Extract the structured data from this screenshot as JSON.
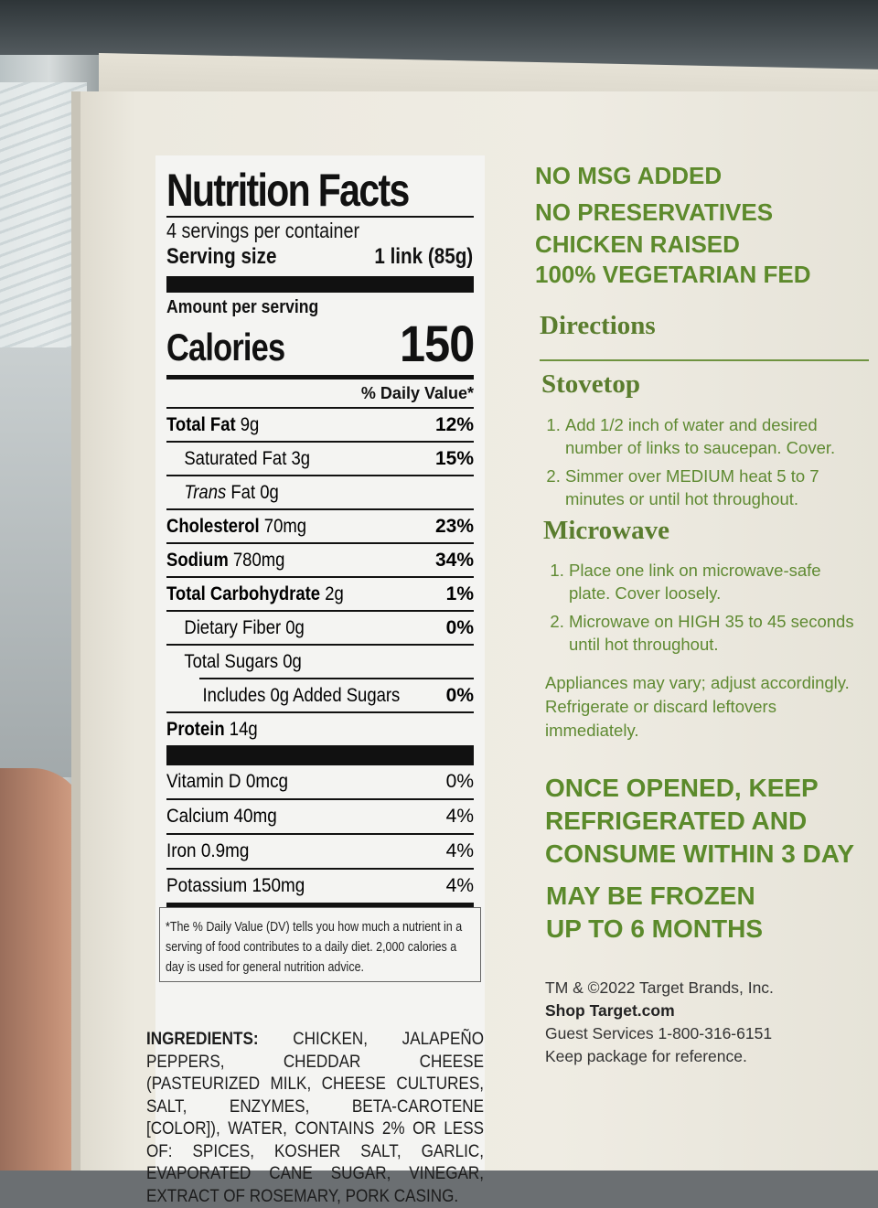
{
  "nutrition": {
    "title": "Nutrition Facts",
    "servings": "4 servings per container",
    "serving_size_label": "Serving size",
    "serving_size_value": "1 link (85g)",
    "amount_per_serving": "Amount per serving",
    "calories_label": "Calories",
    "calories_value": "150",
    "dv_header": "% Daily Value*",
    "rows": [
      {
        "label": "Total Fat",
        "amount": "9g",
        "dv": "12%"
      },
      {
        "label": "Saturated Fat",
        "amount": "3g",
        "dv": "15%"
      },
      {
        "label": "Trans",
        "amount": "Fat 0g",
        "dv": ""
      },
      {
        "label": "Cholesterol",
        "amount": "70mg",
        "dv": "23%"
      },
      {
        "label": "Sodium",
        "amount": "780mg",
        "dv": "34%"
      },
      {
        "label": "Total Carbohydrate",
        "amount": "2g",
        "dv": "1%"
      },
      {
        "label": "Dietary Fiber 0g",
        "amount": "",
        "dv": "0%"
      },
      {
        "label": "Total Sugars 0g",
        "amount": "",
        "dv": ""
      },
      {
        "label": "Includes 0g Added Sugars",
        "amount": "",
        "dv": "0%"
      },
      {
        "label": "Protein",
        "amount": "14g",
        "dv": ""
      }
    ],
    "vitamins": [
      {
        "label": "Vitamin D 0mcg",
        "dv": "0%"
      },
      {
        "label": "Calcium 40mg",
        "dv": "4%"
      },
      {
        "label": "Iron 0.9mg",
        "dv": "4%"
      },
      {
        "label": "Potassium 150mg",
        "dv": "4%"
      }
    ],
    "footnote": "*The % Daily Value (DV) tells you how much a nutrient in a serving of food contributes to a daily diet. 2,000 calories a day is used for general nutrition advice."
  },
  "ingredients": {
    "label": "INGREDIENTS:",
    "text": "CHICKEN, JALAPEÑO PEPPERS, CHEDDAR CHEESE (PASTEURIZED MILK, CHEESE CULTURES, SALT, ENZYMES, BETA-CAROTENE [COLOR]), WATER, CONTAINS 2% OR LESS OF: SPICES, KOSHER SALT, GARLIC, EVAPORATED CANE SUGAR, VINEGAR, EXTRACT OF ROSEMARY, PORK CASING."
  },
  "claims": [
    "NO MSG ADDED",
    "NO PRESERVATIVES",
    "CHICKEN RAISED",
    "100% VEGETARIAN FED"
  ],
  "directions": {
    "title": "Directions",
    "stovetop_title": "Stovetop",
    "stovetop_steps": [
      "Add 1/2 inch of water and desired number of links to saucepan. Cover.",
      "Simmer over MEDIUM heat 5 to 7 minutes or until hot throughout."
    ],
    "microwave_title": "Microwave",
    "microwave_steps": [
      "Place one link on microwave-safe plate. Cover loosely.",
      "Microwave on HIGH 35 to 45 seconds until hot throughout."
    ],
    "note": "Appliances may vary; adjust accordingly. Refrigerate or discard leftovers immediately."
  },
  "storage": {
    "line1": "ONCE OPENED, KEEP",
    "line2": "REFRIGERATED AND",
    "line3": "CONSUME WITHIN 3 DAY",
    "frozen1": "MAY BE FROZEN",
    "frozen2": "UP TO 6 MONTHS"
  },
  "legal": {
    "trademark": "TM & ©2022 Target Brands, Inc.",
    "site": "Shop Target.com",
    "guest": "Guest Services 1-800-316-6151",
    "keep": "Keep package for reference."
  }
}
